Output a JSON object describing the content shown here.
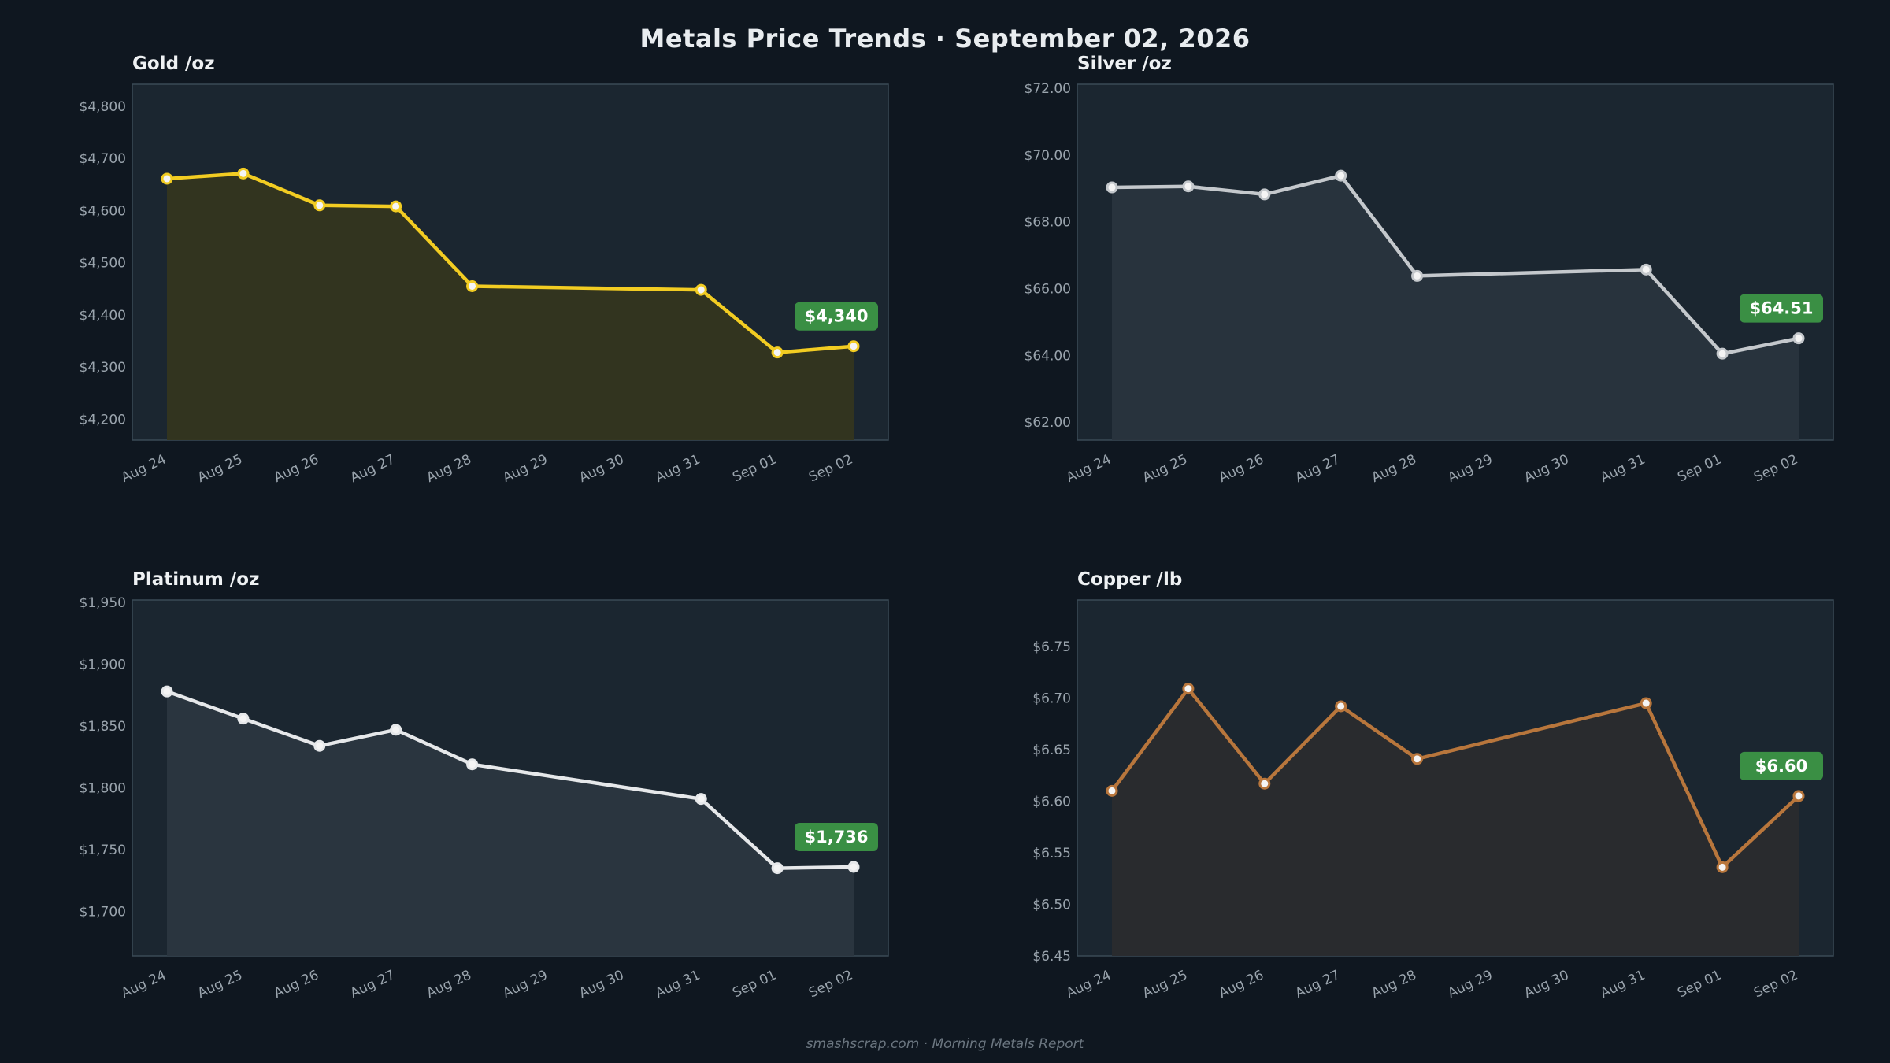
{
  "title": "Metals Price Trends  ·  September 02, 2026",
  "footer": "smashscrap.com  ·  Morning Metals Report",
  "colors": {
    "background": "#0f1720",
    "panel": "#1b2630",
    "badge": "#3a8f44",
    "gold": "#f2cc22",
    "silver": "#c4c8cc",
    "platinum": "#e6e8ea",
    "copper": "#b8763c"
  },
  "chart_data": [
    {
      "type": "area",
      "title": "Gold  /oz",
      "x": [
        "Aug 24",
        "Aug 25",
        "Aug 26",
        "Aug 27",
        "Aug 28",
        "Aug 29",
        "Aug 30",
        "Aug 31",
        "Sep 01",
        "Sep 02"
      ],
      "points": [
        {
          "x": "Aug 24",
          "y": 4661
        },
        {
          "x": "Aug 25",
          "y": 4671
        },
        {
          "x": "Aug 26",
          "y": 4610
        },
        {
          "x": "Aug 27",
          "y": 4608
        },
        {
          "x": "Aug 28",
          "y": 4455
        },
        {
          "x": "Aug 31",
          "y": 4448
        },
        {
          "x": "Sep 01",
          "y": 4328
        },
        {
          "x": "Sep 02",
          "y": 4340
        }
      ],
      "yticks": [
        "$4,200",
        "$4,300",
        "$4,400",
        "$4,500",
        "$4,600",
        "$4,700",
        "$4,800"
      ],
      "ytick_values": [
        4200,
        4300,
        4400,
        4500,
        4600,
        4700,
        4800
      ],
      "ylim": [
        4160,
        4842
      ],
      "latest_label": "$4,340",
      "color": "#f2cc22",
      "fill": "#34351f",
      "grid": false
    },
    {
      "type": "area",
      "title": "Silver  /oz",
      "x": [
        "Aug 24",
        "Aug 25",
        "Aug 26",
        "Aug 27",
        "Aug 28",
        "Aug 29",
        "Aug 30",
        "Aug 31",
        "Sep 01",
        "Sep 02"
      ],
      "points": [
        {
          "x": "Aug 24",
          "y": 69.03
        },
        {
          "x": "Aug 25",
          "y": 69.06
        },
        {
          "x": "Aug 26",
          "y": 68.82
        },
        {
          "x": "Aug 27",
          "y": 69.38
        },
        {
          "x": "Aug 28",
          "y": 66.38
        },
        {
          "x": "Aug 31",
          "y": 66.57
        },
        {
          "x": "Sep 01",
          "y": 64.05
        },
        {
          "x": "Sep 02",
          "y": 64.51
        }
      ],
      "yticks": [
        "$62.00",
        "$64.00",
        "$66.00",
        "$68.00",
        "$70.00",
        "$72.00"
      ],
      "ytick_values": [
        62,
        64,
        66,
        68,
        70,
        72
      ],
      "ylim": [
        61.46,
        72.12
      ],
      "latest_label": "$64.51",
      "color": "#c4c8cc",
      "fill": "#29343e",
      "grid": false
    },
    {
      "type": "area",
      "title": "Platinum  /oz",
      "x": [
        "Aug 24",
        "Aug 25",
        "Aug 26",
        "Aug 27",
        "Aug 28",
        "Aug 29",
        "Aug 30",
        "Aug 31",
        "Sep 01",
        "Sep 02"
      ],
      "points": [
        {
          "x": "Aug 24",
          "y": 1878
        },
        {
          "x": "Aug 25",
          "y": 1856
        },
        {
          "x": "Aug 26",
          "y": 1834
        },
        {
          "x": "Aug 27",
          "y": 1847
        },
        {
          "x": "Aug 28",
          "y": 1819
        },
        {
          "x": "Aug 31",
          "y": 1791
        },
        {
          "x": "Sep 01",
          "y": 1735
        },
        {
          "x": "Sep 02",
          "y": 1736
        }
      ],
      "yticks": [
        "$1,700",
        "$1,750",
        "$1,800",
        "$1,850",
        "$1,900",
        "$1,950"
      ],
      "ytick_values": [
        1700,
        1750,
        1800,
        1850,
        1900,
        1950
      ],
      "ylim": [
        1664,
        1952
      ],
      "latest_label": "$1,736",
      "color": "#e6e8ea",
      "fill": "#2b3640",
      "grid": false
    },
    {
      "type": "area",
      "title": "Copper  /lb",
      "x": [
        "Aug 24",
        "Aug 25",
        "Aug 26",
        "Aug 27",
        "Aug 28",
        "Aug 29",
        "Aug 30",
        "Aug 31",
        "Sep 01",
        "Sep 02"
      ],
      "points": [
        {
          "x": "Aug 24",
          "y": 6.61
        },
        {
          "x": "Aug 25",
          "y": 6.709
        },
        {
          "x": "Aug 26",
          "y": 6.617
        },
        {
          "x": "Aug 27",
          "y": 6.692
        },
        {
          "x": "Aug 28",
          "y": 6.641
        },
        {
          "x": "Aug 31",
          "y": 6.695
        },
        {
          "x": "Sep 01",
          "y": 6.536
        },
        {
          "x": "Sep 02",
          "y": 6.605
        }
      ],
      "yticks": [
        "$6.45",
        "$6.50",
        "$6.55",
        "$6.60",
        "$6.65",
        "$6.70",
        "$6.75"
      ],
      "ytick_values": [
        6.45,
        6.5,
        6.55,
        6.6,
        6.65,
        6.7,
        6.75
      ],
      "ylim": [
        6.45,
        6.795
      ],
      "latest_label": "$6.60",
      "color": "#b8763c",
      "fill": "#2a2b2e",
      "grid": false
    }
  ]
}
